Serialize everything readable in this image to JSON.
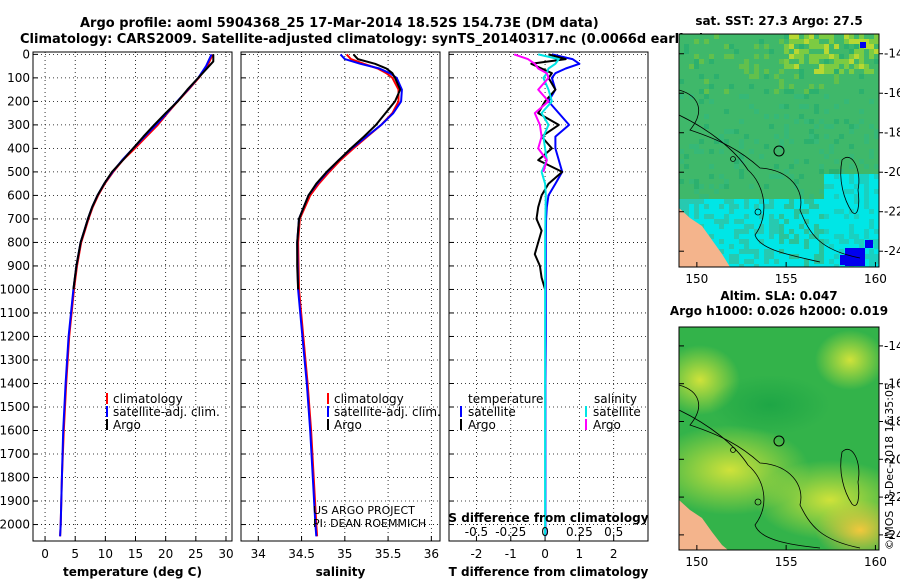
{
  "header": {
    "line1": "Argo profile: aoml 5904368_25 17-Mar-2014 18.52S 154.73E (DM data)",
    "line2": "Climatology: CARS2009. Satellite-adjusted climatology: synTS_20140317.nc (0.0066d earlier)"
  },
  "colors": {
    "climatology": "#ff0000",
    "satellite": "#0000ff",
    "argo": "#000000",
    "sat_salinity": "#00e5e5",
    "argo_salinity": "#ff00ff"
  },
  "depth_ticks": [
    "0",
    "100",
    "200",
    "300",
    "400",
    "500",
    "600",
    "700",
    "800",
    "900",
    "1000",
    "1100",
    "1200",
    "1300",
    "1400",
    "1500",
    "1600",
    "1700",
    "1800",
    "1900",
    "2000"
  ],
  "legend": {
    "climatology": "climatology",
    "satellite_adj": "satellite-adj. clim.",
    "argo": "Argo"
  },
  "legend3": {
    "temperature": "temperature",
    "salinity": "salinity",
    "satellite": "satellite",
    "argo": "Argo"
  },
  "credit": {
    "line1": "US ARGO PROJECT",
    "line2": "PI: DEAN ROEMMICH"
  },
  "timestamp": "©IMOS 13-Dec-2018 16:35:05",
  "chart_data": [
    {
      "type": "line",
      "title": "",
      "xlabel": "temperature (deg C)",
      "ylabel": "depth",
      "xlim": [
        -2,
        31
      ],
      "ylim": [
        2070,
        -10
      ],
      "xticks": [
        "0",
        "5",
        "10",
        "15",
        "20",
        "25",
        "30"
      ],
      "xtick_values": [
        0,
        5,
        10,
        15,
        20,
        25,
        30
      ],
      "series": [
        {
          "name": "climatology",
          "depth": [
            0,
            50,
            100,
            150,
            200,
            250,
            300,
            350,
            400,
            450,
            500,
            550,
            600,
            650,
            700,
            750,
            800,
            900,
            1000,
            1200,
            1400,
            1600,
            1800,
            2000,
            2050
          ],
          "values": [
            27.8,
            26.9,
            25.5,
            23.8,
            22.0,
            20.3,
            18.7,
            16.8,
            14.9,
            12.9,
            11.3,
            9.9,
            8.8,
            7.9,
            7.2,
            6.6,
            6.0,
            5.3,
            4.8,
            4.0,
            3.5,
            3.1,
            2.8,
            2.6,
            2.5
          ]
        },
        {
          "name": "satellite-adj. clim.",
          "depth": [
            0,
            50,
            100,
            150,
            200,
            250,
            300,
            350,
            400,
            450,
            500,
            550,
            600,
            650,
            700,
            750,
            800,
            900,
            1000,
            1200,
            1400,
            1600,
            1800,
            2000,
            2050
          ],
          "values": [
            27.6,
            26.7,
            25.4,
            23.7,
            21.9,
            20.2,
            18.4,
            16.5,
            14.6,
            12.8,
            11.2,
            9.8,
            8.7,
            7.8,
            7.1,
            6.5,
            5.9,
            5.2,
            4.7,
            3.9,
            3.4,
            3.0,
            2.8,
            2.6,
            2.5
          ]
        },
        {
          "name": "Argo",
          "depth": [
            0,
            30,
            50,
            100,
            150,
            200,
            250,
            300,
            350,
            400,
            450,
            500,
            550,
            600,
            650,
            700,
            750,
            800,
            900,
            1000
          ],
          "values": [
            27.9,
            27.9,
            27.2,
            25.4,
            23.6,
            22.0,
            20.0,
            18.1,
            16.3,
            14.6,
            12.9,
            11.1,
            9.8,
            8.7,
            7.8,
            7.1,
            6.5,
            5.9,
            5.2,
            4.7
          ]
        }
      ]
    },
    {
      "type": "line",
      "title": "",
      "xlabel": "salinity",
      "ylabel": "depth",
      "xlim": [
        33.8,
        36.1
      ],
      "ylim": [
        2070,
        -10
      ],
      "xticks": [
        "34",
        "34.5",
        "35",
        "35.5",
        "36"
      ],
      "xtick_values": [
        34,
        34.5,
        35,
        35.5,
        36
      ],
      "series": [
        {
          "name": "climatology",
          "depth": [
            0,
            20,
            40,
            60,
            80,
            100,
            150,
            200,
            250,
            300,
            350,
            400,
            450,
            500,
            550,
            600,
            700,
            800,
            1000,
            1200,
            1400,
            1600,
            1800,
            2000,
            2050
          ],
          "values": [
            35.02,
            35.07,
            35.22,
            35.38,
            35.48,
            35.55,
            35.62,
            35.62,
            35.55,
            35.42,
            35.26,
            35.1,
            34.95,
            34.82,
            34.7,
            34.6,
            34.48,
            34.46,
            34.47,
            34.52,
            34.57,
            34.61,
            34.64,
            34.67,
            34.68
          ]
        },
        {
          "name": "satellite-adj. clim.",
          "depth": [
            0,
            20,
            40,
            60,
            80,
            100,
            150,
            200,
            250,
            300,
            350,
            400,
            450,
            500,
            550,
            600,
            700,
            800,
            1000,
            1200,
            1400,
            1600,
            1800,
            2000,
            2050
          ],
          "values": [
            34.95,
            35.0,
            35.18,
            35.4,
            35.52,
            35.6,
            35.66,
            35.65,
            35.56,
            35.42,
            35.25,
            35.08,
            34.93,
            34.8,
            34.68,
            34.58,
            34.47,
            34.45,
            34.46,
            34.51,
            34.56,
            34.6,
            34.63,
            34.66,
            34.67
          ]
        },
        {
          "name": "Argo",
          "depth": [
            0,
            20,
            40,
            60,
            80,
            100,
            150,
            200,
            250,
            300,
            350,
            400,
            450,
            500,
            550,
            600,
            700,
            800,
            900,
            1000
          ],
          "values": [
            35.1,
            35.15,
            35.35,
            35.48,
            35.55,
            35.58,
            35.64,
            35.58,
            35.47,
            35.36,
            35.22,
            35.07,
            34.93,
            34.79,
            34.67,
            34.58,
            34.47,
            34.45,
            34.45,
            34.46
          ]
        }
      ]
    },
    {
      "type": "line",
      "title": "",
      "xlabel": "T difference from climatology",
      "ylabel": "depth",
      "subtitle": "S difference from climatology",
      "xlim": [
        -2.8,
        3.0
      ],
      "ylim": [
        2070,
        -10
      ],
      "xticks": [
        "-2",
        "-1",
        "0",
        "1",
        "2"
      ],
      "xtick_values": [
        -2,
        -1,
        0,
        1,
        2
      ],
      "sticks": [
        "-0.5",
        "-0.25",
        "0",
        "0.25",
        "0.5"
      ],
      "series": [
        {
          "name": "temperature satellite",
          "depth": [
            0,
            20,
            40,
            60,
            80,
            100,
            150,
            200,
            250,
            300,
            350,
            400,
            450,
            500,
            550,
            600,
            650,
            700,
            800,
            1000,
            1200,
            1400,
            1600,
            1800,
            2000,
            2050
          ],
          "values": [
            0.2,
            0.8,
            1.0,
            0.6,
            0.3,
            0.2,
            0.3,
            0.1,
            0.4,
            0.7,
            0.3,
            0.3,
            0.4,
            0.5,
            0.3,
            0.1,
            0.05,
            0.03,
            0.02,
            0.02,
            0.02,
            0.01,
            0.01,
            0.01,
            0.01,
            0.01
          ]
        },
        {
          "name": "temperature Argo",
          "depth": [
            0,
            20,
            40,
            60,
            80,
            100,
            150,
            200,
            250,
            300,
            350,
            400,
            450,
            500,
            550,
            600,
            650,
            700,
            750,
            800,
            850,
            900,
            950,
            1000
          ],
          "values": [
            0.1,
            0.6,
            -0.4,
            -0.1,
            0.2,
            0.1,
            0.3,
            0.0,
            -0.2,
            0.4,
            -0.1,
            0.2,
            -0.2,
            0.5,
            0.1,
            -0.1,
            -0.2,
            -0.25,
            -0.1,
            -0.2,
            -0.3,
            -0.15,
            -0.1,
            0.0
          ]
        },
        {
          "name": "salinity satellite",
          "depth": [
            0,
            20,
            40,
            60,
            80,
            100,
            150,
            200,
            250,
            300,
            350,
            400,
            450,
            500,
            550,
            600,
            700,
            800,
            1000,
            1500,
            2050
          ],
          "values": [
            -0.2,
            0.4,
            0.3,
            0.1,
            0.05,
            -0.05,
            0.1,
            0.2,
            -0.1,
            0.1,
            -0.05,
            0.0,
            0.05,
            -0.1,
            0.0,
            0.02,
            0.01,
            0.0,
            0.0,
            0.0,
            0.0
          ]
        },
        {
          "name": "salinity Argo",
          "depth": [
            0,
            20,
            40,
            60,
            80,
            100,
            150,
            200,
            250,
            300,
            350,
            400,
            450,
            500
          ],
          "values": [
            -0.9,
            -0.5,
            -0.3,
            -0.2,
            0.05,
            0.1,
            -0.2,
            0.1,
            -0.3,
            -0.15,
            -0.1,
            -0.2,
            0.05,
            -0.05
          ]
        }
      ]
    },
    {
      "type": "heatmap",
      "title": "sat. SST: 27.3 Argo: 27.5",
      "xlabel": "",
      "ylabel": "",
      "xticks": [
        "150",
        "155",
        "160"
      ],
      "yticks": [
        "-14",
        "-16",
        "-18",
        "-20",
        "-22",
        "-24"
      ],
      "xlim": [
        149,
        160.2
      ],
      "ylim": [
        -24.8,
        -13.0
      ]
    },
    {
      "type": "heatmap",
      "title": "Altim. SLA: 0.047",
      "subtitle": "Argo h1000: 0.026 h2000: 0.019",
      "xlabel": "",
      "ylabel": "",
      "xticks": [
        "150",
        "155",
        "160"
      ],
      "yticks": [
        "-14",
        "-16",
        "-18",
        "-20",
        "-22",
        "-24"
      ],
      "xlim": [
        149,
        160.2
      ],
      "ylim": [
        -24.8,
        -13.0
      ]
    }
  ]
}
